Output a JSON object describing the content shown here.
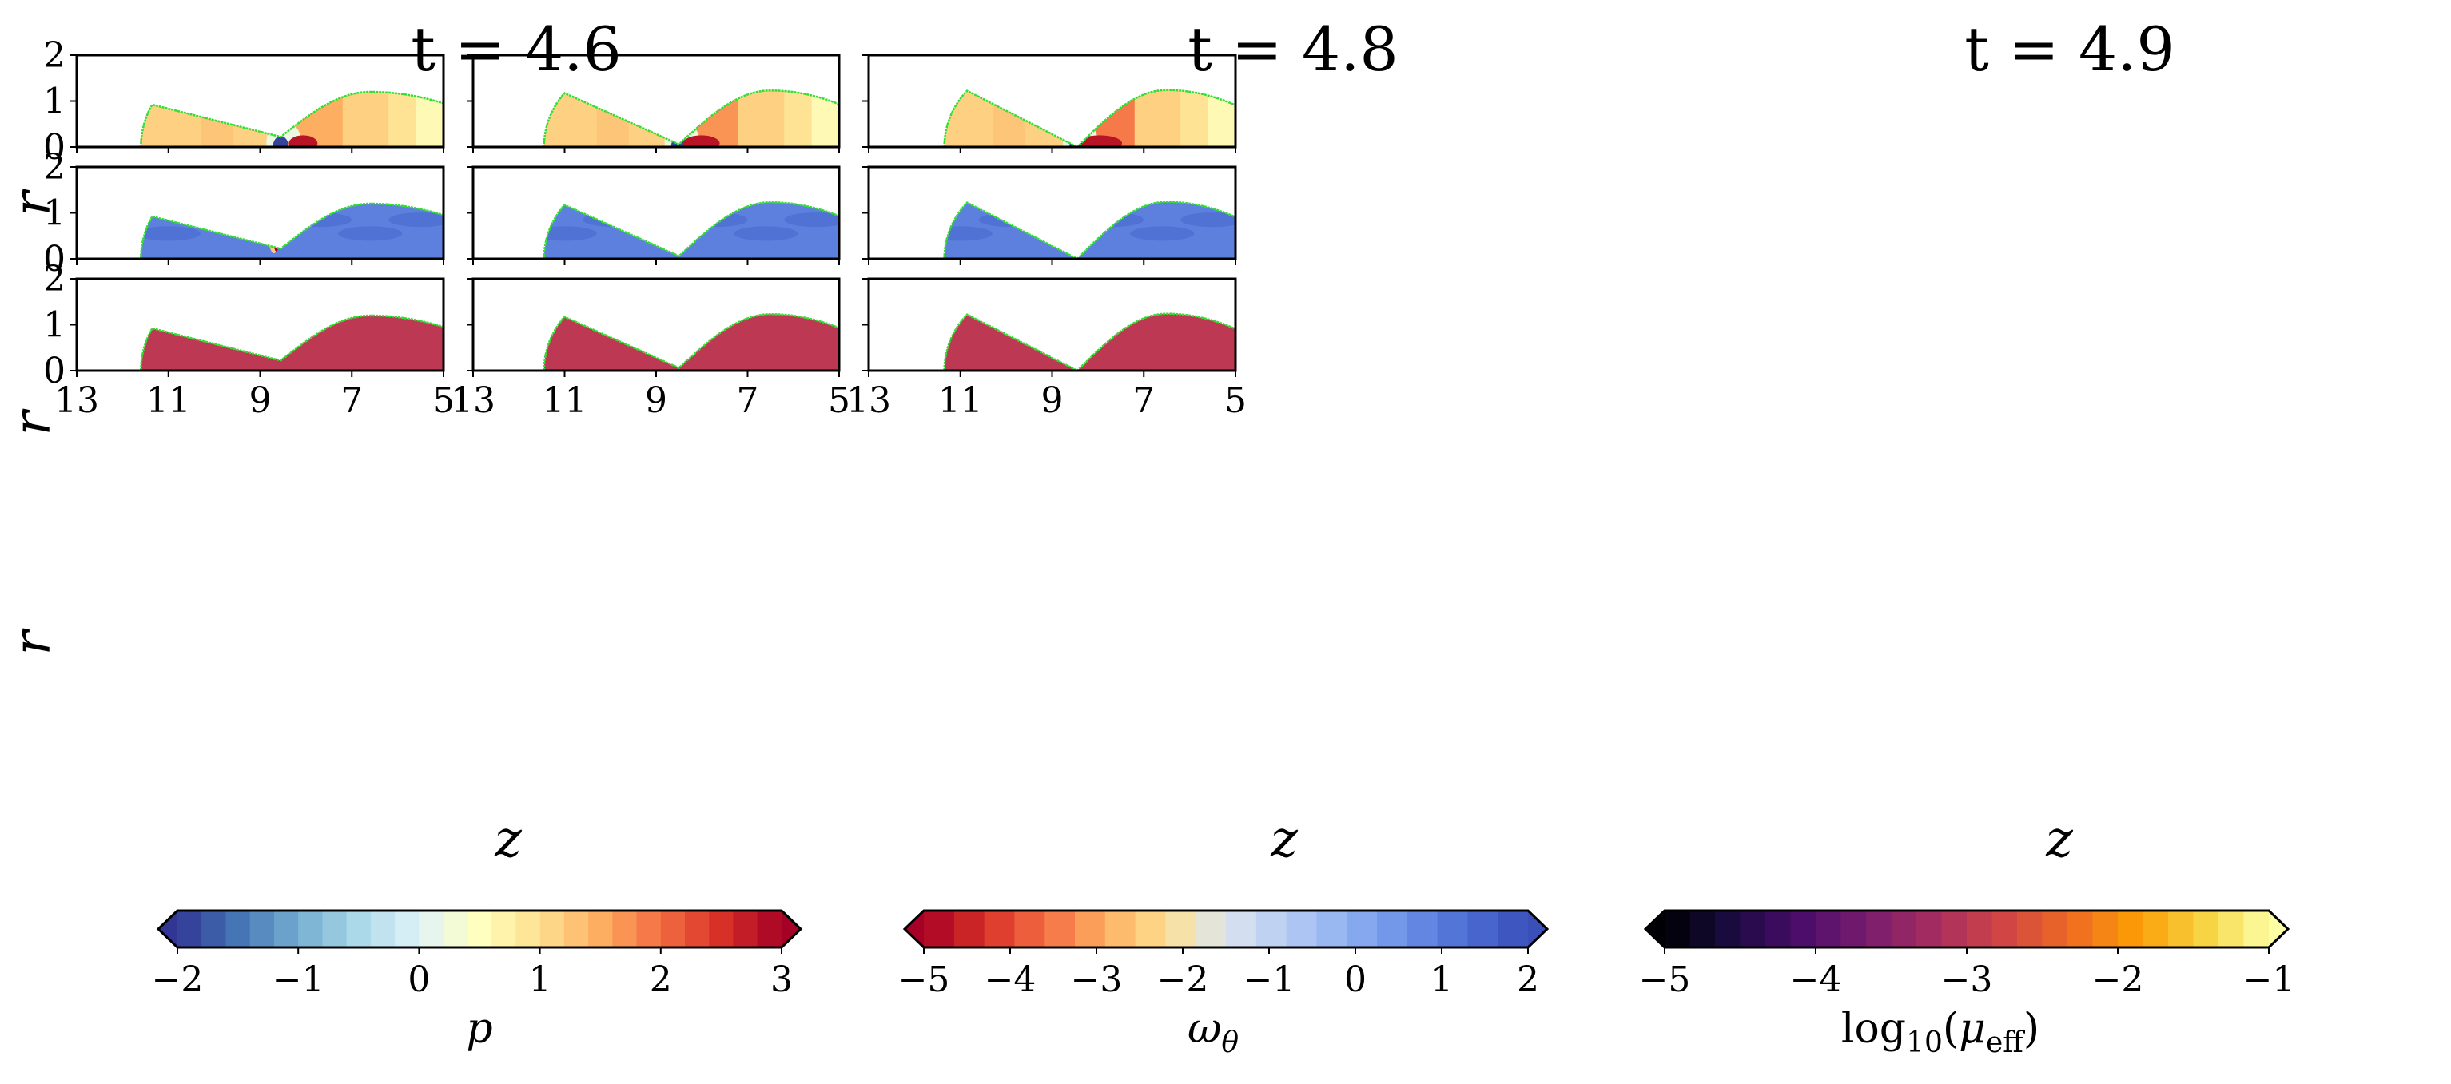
{
  "figure": {
    "titles": [
      "t = 4.6",
      "t = 4.8",
      "t = 4.9"
    ],
    "row_ylabel": "r",
    "col_xlabel": "z",
    "x_ticks": [
      "13",
      "11",
      "9",
      "7",
      "5"
    ],
    "y_ticks": [
      "0",
      "1",
      "2"
    ],
    "interface_color": "#33dd33",
    "fill_color_mu": "#bc3853",
    "colorbars": [
      {
        "label": "p",
        "ticks": [
          "−2",
          "−1",
          "0",
          "1",
          "2",
          "3"
        ],
        "min": -2,
        "max": 3,
        "levels": 25,
        "colormap": "RdYlBu_r"
      },
      {
        "label_main": "ω",
        "label_sub": "θ",
        "ticks": [
          "−5",
          "−4",
          "−3",
          "−2",
          "−1",
          "0",
          "1",
          "2"
        ],
        "min": -5,
        "max": 2,
        "levels": 20,
        "colormap": "RdYlBu"
      },
      {
        "label_main": "log",
        "label_base": "10",
        "label_arg": "μ",
        "label_arg_sub": "eff",
        "ticks": [
          "−5",
          "−4",
          "−3",
          "−2",
          "−1"
        ],
        "min": -5,
        "max": -1,
        "levels": 24,
        "colormap": "inferno"
      }
    ]
  },
  "chart_data": [
    {
      "type": "heatmap",
      "title": "t = 4.6",
      "field": "p",
      "xlabel": "z",
      "ylabel": "r",
      "xlim": [
        13,
        5
      ],
      "ylim": [
        0,
        2
      ],
      "drop_shape": {
        "rear_z": 11.6,
        "cap_center_z": 10.0,
        "cap_radius": 1.73,
        "neck_z": 8.55,
        "neck_r": 0.22,
        "tail_peak_z": 6.6,
        "tail_peak_r": 1.2,
        "tail_end_r": 0.95
      }
    },
    {
      "type": "heatmap",
      "title": "t = 4.8",
      "field": "p",
      "xlabel": "z",
      "ylabel": "r",
      "xlim": [
        13,
        5
      ],
      "ylim": [
        0,
        2
      ],
      "drop_shape": {
        "rear_z": 11.45,
        "cap_center_z": 9.75,
        "cap_radius": 1.73,
        "neck_z": 8.5,
        "neck_r": 0.06,
        "tail_peak_z": 6.5,
        "tail_peak_r": 1.23,
        "tail_end_r": 0.93
      }
    },
    {
      "type": "heatmap",
      "title": "t = 4.9",
      "field": "p",
      "xlabel": "z",
      "ylabel": "r",
      "xlim": [
        13,
        5
      ],
      "ylim": [
        0,
        2
      ],
      "drop_shape": {
        "rear_z": 11.35,
        "cap_center_z": 9.65,
        "cap_radius": 1.73,
        "neck_z": 8.45,
        "neck_r": 0.0,
        "tail_peak_z": 6.5,
        "tail_peak_r": 1.24,
        "tail_end_r": 0.91
      }
    },
    {
      "type": "heatmap",
      "title": "",
      "field": "ω_θ",
      "xlabel": "z",
      "ylabel": "r",
      "xlim": [
        13,
        5
      ],
      "ylim": [
        0,
        2
      ]
    },
    {
      "type": "heatmap",
      "title": "",
      "field": "ω_θ",
      "xlabel": "z",
      "ylabel": "r",
      "xlim": [
        13,
        5
      ],
      "ylim": [
        0,
        2
      ]
    },
    {
      "type": "heatmap",
      "title": "",
      "field": "ω_θ",
      "xlabel": "z",
      "ylabel": "r",
      "xlim": [
        13,
        5
      ],
      "ylim": [
        0,
        2
      ]
    },
    {
      "type": "heatmap",
      "title": "",
      "field": "log10(μ_eff)",
      "xlabel": "z",
      "ylabel": "r",
      "xlim": [
        13,
        5
      ],
      "ylim": [
        0,
        2
      ]
    },
    {
      "type": "heatmap",
      "title": "",
      "field": "log10(μ_eff)",
      "xlabel": "z",
      "ylabel": "r",
      "xlim": [
        13,
        5
      ],
      "ylim": [
        0,
        2
      ]
    },
    {
      "type": "heatmap",
      "title": "",
      "field": "log10(μ_eff)",
      "xlabel": "z",
      "ylabel": "r",
      "xlim": [
        13,
        5
      ],
      "ylim": [
        0,
        2
      ]
    }
  ]
}
